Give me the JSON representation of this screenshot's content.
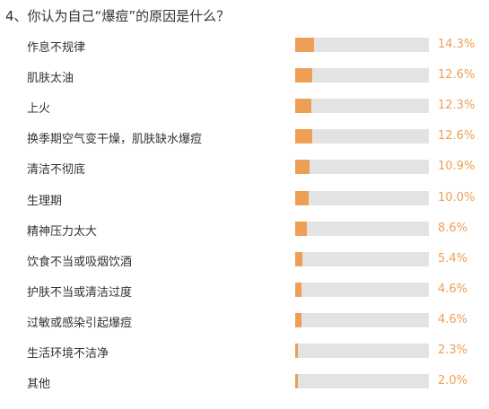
{
  "colors": {
    "bar_fill": "#ee9f56",
    "bar_track": "#e3e3e3",
    "percent_text": "#ee9f56",
    "text": "#333333"
  },
  "chart_data": {
    "type": "bar",
    "orientation": "horizontal",
    "title": "4、你认为自己“爆痘”的原因是什么？",
    "xlim": [
      0,
      100
    ],
    "grid": false,
    "categories": [
      "作息不规律",
      "肌肤太油",
      "上火",
      "换季期空气变干燥，肌肤缺水爆痘",
      "清洁不彻底",
      "生理期",
      "精神压力太大",
      "饮食不当或吸烟饮酒",
      "护肤不当或清洁过度",
      "过敏或感染引起爆痘",
      "生活环境不洁净",
      "其他"
    ],
    "values": [
      14.3,
      12.6,
      12.3,
      12.6,
      10.9,
      10.0,
      8.6,
      5.4,
      4.6,
      4.6,
      2.3,
      2.0
    ],
    "value_labels": [
      "14.3%",
      "12.6%",
      "12.3%",
      "12.6%",
      "10.9%",
      "10.0%",
      "8.6%",
      "5.4%",
      "4.6%",
      "4.6%",
      "2.3%",
      "2.0%"
    ]
  }
}
